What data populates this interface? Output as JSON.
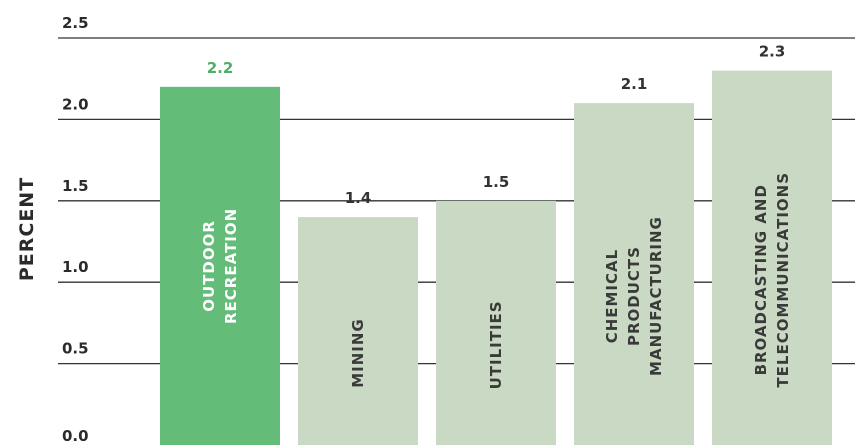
{
  "colors": {
    "highlight_bar": "#63bd78",
    "highlight_label": "#4caf62",
    "default_bar": "#c9d9c3",
    "default_label": "#333333",
    "bar_text_highlight": "#ffffff",
    "bar_text_default": "#3a3a3a"
  },
  "chart_data": {
    "type": "bar",
    "categories": [
      [
        "OUTDOOR",
        "RECREATION"
      ],
      [
        "MINING"
      ],
      [
        "UTILITIES"
      ],
      [
        "CHEMICAL",
        "PRODUCTS",
        "MANUFACTURING"
      ],
      [
        "BROADCASTING AND",
        "TELECOMMUNICATIONS"
      ]
    ],
    "values": [
      2.2,
      1.4,
      1.5,
      2.1,
      2.3
    ],
    "value_labels": [
      "2.2",
      "1.4",
      "1.5",
      "2.1",
      "2.3"
    ],
    "highlight_index": 0,
    "ylabel": "PERCENT",
    "ylim": [
      0,
      2.5
    ],
    "yticks": [
      "0.0",
      "0.5",
      "1.0",
      "1.5",
      "2.0",
      "2.5"
    ],
    "grid": true
  }
}
